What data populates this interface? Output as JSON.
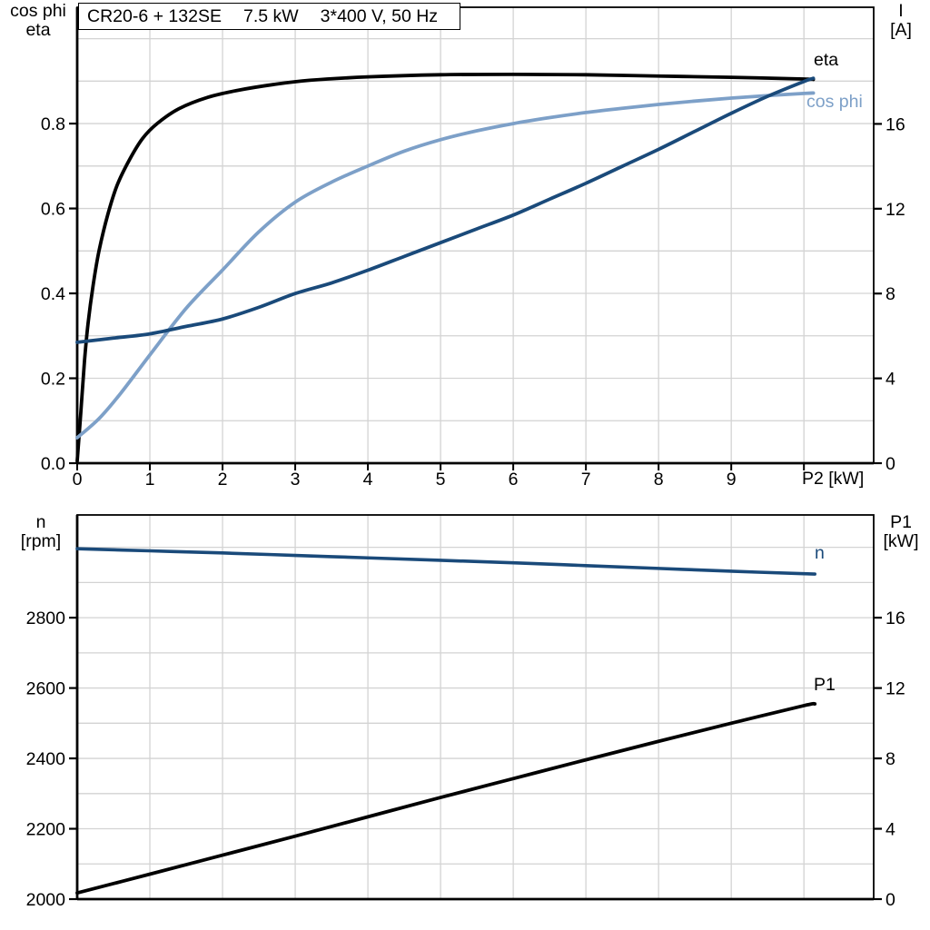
{
  "title": {
    "parts": [
      "CR20-6 + 132SE",
      "7.5 kW",
      "3*400 V, 50 Hz"
    ]
  },
  "axis_titles": {
    "top_left": [
      "cos phi",
      "eta"
    ],
    "top_right": [
      "I",
      "[A]"
    ],
    "bottom_left": [
      "n",
      "[rpm]"
    ],
    "bottom_right": [
      "P1",
      "[kW]"
    ]
  },
  "colors": {
    "curve_black": "#000000",
    "curve_dark_blue": "#1a4a7a",
    "curve_light_blue": "#7da0c8",
    "grid": "#d3d3d3",
    "frame": "#000000",
    "background": "#ffffff"
  },
  "chart_data": [
    {
      "type": "line",
      "title": "CR20-6 + 132SE  7.5 kW  3*400 V, 50 Hz",
      "x_axis": {
        "label": "P2 [kW]",
        "min": 0,
        "max": 10.96,
        "grid_values": [
          1,
          2,
          3,
          4,
          5,
          6,
          7,
          8,
          9,
          10
        ],
        "tick_values": [
          0,
          1,
          2,
          3,
          4,
          5,
          6,
          7,
          8,
          9,
          10
        ],
        "tick_labels": [
          "0",
          "1",
          "2",
          "3",
          "4",
          "5",
          "6",
          "7",
          "8",
          "9",
          ""
        ]
      },
      "y_left": {
        "label": "cos phi / eta",
        "min": 0,
        "max": 1.074,
        "tick_values": [
          0,
          0.2,
          0.4,
          0.6,
          0.8
        ],
        "tick_labels": [
          "0.0",
          "0.2",
          "0.4",
          "0.6",
          "0.8"
        ],
        "grid_values": [
          0.1,
          0.2,
          0.3,
          0.4,
          0.5,
          0.6,
          0.7,
          0.8,
          0.9,
          1.0
        ]
      },
      "y_right": {
        "label": "I [A]",
        "min": 0,
        "max": 21.5,
        "tick_values": [
          0,
          4,
          8,
          12,
          16
        ],
        "tick_labels": [
          "0",
          "4",
          "8",
          "12",
          "16"
        ]
      },
      "legend_position": "curve-end-labels",
      "grid": true,
      "series": [
        {
          "name": "eta",
          "axis": "left",
          "color": "#000000",
          "width": 3.8,
          "points": [
            [
              0,
              0.005
            ],
            [
              0.05,
              0.12
            ],
            [
              0.1,
              0.24
            ],
            [
              0.15,
              0.33
            ],
            [
              0.22,
              0.42
            ],
            [
              0.3,
              0.5
            ],
            [
              0.42,
              0.585
            ],
            [
              0.55,
              0.655
            ],
            [
              0.72,
              0.715
            ],
            [
              0.9,
              0.765
            ],
            [
              1.1,
              0.8
            ],
            [
              1.4,
              0.835
            ],
            [
              1.8,
              0.862
            ],
            [
              2.2,
              0.878
            ],
            [
              2.7,
              0.892
            ],
            [
              3.2,
              0.902
            ],
            [
              4,
              0.91
            ],
            [
              5,
              0.915
            ],
            [
              6,
              0.916
            ],
            [
              7,
              0.915
            ],
            [
              8,
              0.912
            ],
            [
              9,
              0.909
            ],
            [
              10,
              0.905
            ],
            [
              10.13,
              0.904
            ]
          ]
        },
        {
          "name": "cos phi",
          "axis": "left",
          "color": "#7da0c8",
          "width": 3.8,
          "points": [
            [
              0,
              0.06
            ],
            [
              0.3,
              0.105
            ],
            [
              0.6,
              0.165
            ],
            [
              1,
              0.255
            ],
            [
              1.5,
              0.365
            ],
            [
              2,
              0.455
            ],
            [
              2.5,
              0.545
            ],
            [
              3,
              0.615
            ],
            [
              3.5,
              0.662
            ],
            [
              4,
              0.7
            ],
            [
              4.5,
              0.735
            ],
            [
              5,
              0.762
            ],
            [
              5.5,
              0.783
            ],
            [
              6,
              0.8
            ],
            [
              6.5,
              0.814
            ],
            [
              7,
              0.826
            ],
            [
              7.5,
              0.836
            ],
            [
              8,
              0.845
            ],
            [
              8.5,
              0.853
            ],
            [
              9,
              0.86
            ],
            [
              9.5,
              0.866
            ],
            [
              10,
              0.871
            ],
            [
              10.13,
              0.872
            ]
          ]
        },
        {
          "name": "I",
          "axis": "right",
          "color": "#1a4a7a",
          "width": 3.8,
          "points": [
            [
              0,
              5.7
            ],
            [
              0.5,
              5.9
            ],
            [
              1,
              6.1
            ],
            [
              1.5,
              6.45
            ],
            [
              2,
              6.8
            ],
            [
              2.5,
              7.35
            ],
            [
              3,
              8.0
            ],
            [
              3.5,
              8.5
            ],
            [
              4,
              9.1
            ],
            [
              4.5,
              9.75
            ],
            [
              5,
              10.4
            ],
            [
              5.5,
              11.05
            ],
            [
              6,
              11.7
            ],
            [
              6.5,
              12.45
            ],
            [
              7,
              13.2
            ],
            [
              7.5,
              14.0
            ],
            [
              8,
              14.8
            ],
            [
              8.5,
              15.65
            ],
            [
              9,
              16.5
            ],
            [
              9.5,
              17.3
            ],
            [
              10,
              18.0
            ],
            [
              10.13,
              18.15
            ]
          ]
        }
      ]
    },
    {
      "type": "line",
      "title": "",
      "x_axis": {
        "label": "",
        "min": 0,
        "max": 10.96,
        "grid_values": [
          1,
          2,
          3,
          4,
          5,
          6,
          7,
          8,
          9,
          10
        ],
        "tick_values": [],
        "tick_labels": []
      },
      "y_left": {
        "label": "n [rpm]",
        "min": 2000,
        "max": 3092,
        "tick_values": [
          2000,
          2200,
          2400,
          2600,
          2800
        ],
        "tick_labels": [
          "2000",
          "2200",
          "2400",
          "2600",
          "2800"
        ],
        "grid_values": [
          2100,
          2200,
          2300,
          2400,
          2500,
          2600,
          2700,
          2800,
          2900,
          3000
        ]
      },
      "y_right": {
        "label": "P1 [kW]",
        "min": 0,
        "max": 21.84,
        "tick_values": [
          0,
          4,
          8,
          12,
          16
        ],
        "tick_labels": [
          "0",
          "4",
          "8",
          "12",
          "16"
        ]
      },
      "legend_position": "curve-end-labels",
      "grid": true,
      "series": [
        {
          "name": "n",
          "axis": "left",
          "color": "#1a4a7a",
          "width": 3.6,
          "points": [
            [
              0,
              2996
            ],
            [
              1,
              2990
            ],
            [
              2,
              2984
            ],
            [
              3,
              2977
            ],
            [
              4,
              2970
            ],
            [
              5,
              2963
            ],
            [
              6,
              2956
            ],
            [
              7,
              2948
            ],
            [
              8,
              2940
            ],
            [
              9,
              2932
            ],
            [
              10,
              2925
            ],
            [
              10.15,
              2924
            ]
          ]
        },
        {
          "name": "P1",
          "axis": "right",
          "color": "#000000",
          "width": 3.8,
          "points": [
            [
              0,
              0.35
            ],
            [
              1,
              1.42
            ],
            [
              2,
              2.5
            ],
            [
              3,
              3.58
            ],
            [
              4,
              4.68
            ],
            [
              5,
              5.78
            ],
            [
              6,
              6.85
            ],
            [
              7,
              7.92
            ],
            [
              8,
              8.97
            ],
            [
              9,
              10.0
            ],
            [
              10,
              11.0
            ],
            [
              10.15,
              11.1
            ]
          ]
        }
      ]
    }
  ]
}
